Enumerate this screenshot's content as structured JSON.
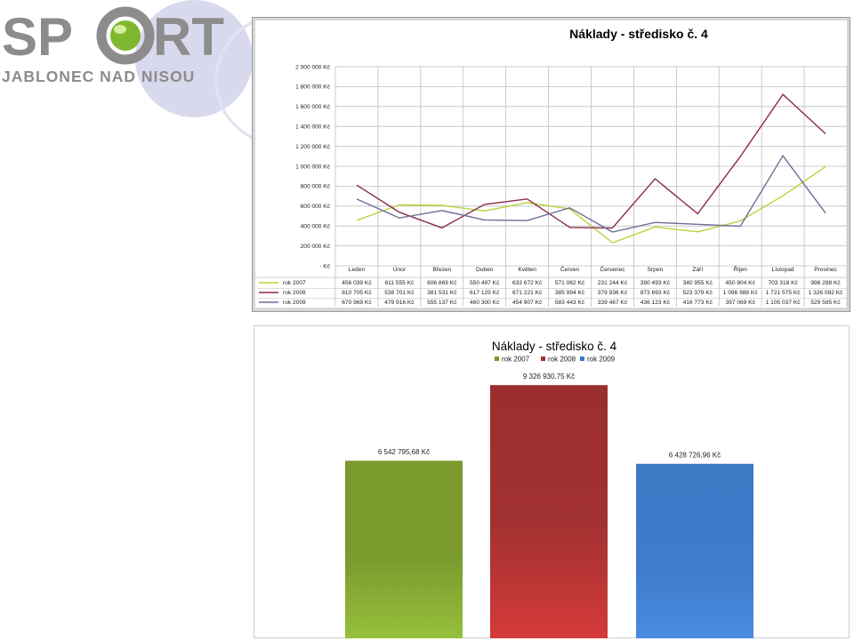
{
  "logo": {
    "text": "SPORT",
    "subtitle": "JABLONEC NAD NISOU"
  },
  "colors": {
    "series2007": "#b9d23a",
    "series2008": "#8b2a4a",
    "series2009": "#6b6f96",
    "bar2007": "#7a9a2e",
    "bar2008": "#a33131",
    "bar2009": "#3e79c5",
    "decor_circle": "#d9d9ee"
  },
  "chart_data": [
    {
      "type": "line",
      "title": "Náklady - středisko č. 4",
      "ylim": [
        0,
        2000000
      ],
      "y_ticks": [
        "- Kč",
        "200 000 Kč",
        "400 000 Kč",
        "600 000 Kč",
        "800 000 Kč",
        "1 000 000 Kč",
        "1 200 000 Kč",
        "1 400 000 Kč",
        "1 600 000 Kč",
        "1 800 000 Kč",
        "2 000 000 Kč"
      ],
      "categories": [
        "Leden",
        "Únor",
        "Březen",
        "Duben",
        "Květen",
        "Červen",
        "Červenec",
        "Srpen",
        "Září",
        "Říjen",
        "Listopad",
        "Prosinec"
      ],
      "grid": true,
      "legend": "data-table",
      "series": [
        {
          "name": "rok 2007",
          "values": [
            456039,
            611555,
            606869,
            550497,
            633672,
            571062,
            231244,
            390493,
            340955,
            450804,
            703318,
            996288
          ],
          "labels": [
            "456 039 Kč",
            "611 555 Kč",
            "606 869 Kč",
            "550 497 Kč",
            "633 672 Kč",
            "571 062 Kč",
            "231 244 Kč",
            "390 493 Kč",
            "340 955 Kč",
            "450 804 Kč",
            "703 318 Kč",
            "996 288 Kč"
          ]
        },
        {
          "name": "rok 2008",
          "values": [
            810705,
            538701,
            381531,
            617125,
            671221,
            385994,
            379936,
            873693,
            523379,
            1096988,
            1721575,
            1326082
          ],
          "labels": [
            "810 705 Kč",
            "538 701 Kč",
            "381 531 Kč",
            "617 125 Kč",
            "671 221 Kč",
            "385 994 Kč",
            "379 936 Kč",
            "873 693 Kč",
            "523 379 Kč",
            "1 096 988 Kč",
            "1 721 575 Kč",
            "1 326 082 Kč"
          ]
        },
        {
          "name": "rok 2009",
          "values": [
            670969,
            479916,
            555137,
            460300,
            454907,
            583443,
            339467,
            436123,
            416773,
            397069,
            1105037,
            529585
          ],
          "labels": [
            "670 969 Kč",
            "479 916 Kč",
            "555 137 Kč",
            "460 300 Kč",
            "454 907 Kč",
            "583 443 Kč",
            "339 467 Kč",
            "436 123 Kč",
            "416 773 Kč",
            "397 069 Kč",
            "1 105 037 Kč",
            "529 585 Kč"
          ]
        }
      ]
    },
    {
      "type": "bar",
      "title": "Náklady - středisko č. 4",
      "legend": "top",
      "categories": [
        "rok 2007",
        "rok 2008",
        "rok 2009"
      ],
      "values": [
        6542795.68,
        9326930.75,
        6428726.96
      ],
      "labels": [
        "6 542 795,68 Kč",
        "9 326 930,75 Kč",
        "6 428 726,96 Kč"
      ]
    }
  ]
}
